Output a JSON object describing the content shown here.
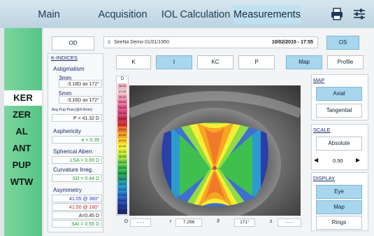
{
  "tabs": [
    {
      "label": "Main"
    },
    {
      "label": "Acquisition"
    },
    {
      "label": "IOL Calculation"
    },
    {
      "label": "Measurements"
    }
  ],
  "toolbar_icons": [
    "printer-icon",
    "sliders-icon"
  ],
  "left_nav": [
    {
      "label": "KER"
    },
    {
      "label": "ZER"
    },
    {
      "label": "AL"
    },
    {
      "label": "ANT"
    },
    {
      "label": "PUP"
    },
    {
      "label": "WTW"
    }
  ],
  "eye_left": "OD",
  "eye_right": "OS",
  "patient": "SeeNa Demo 01/01/1950",
  "exam_datetime": "10/02/2015 - 17:55",
  "kindices": {
    "title": "K-INDICES",
    "astig_label": "Astigmatism",
    "astig_3mm_label": "3mm",
    "astig_3mm_val": "-3.18D ax 172°",
    "astig_5mm_label": "5mm",
    "astig_5mm_val": "-3.16D ax 172°",
    "avgpup_label": "Avg Pup Pow.(@4.5mm)",
    "avgpup_val": "P = 41.32 D",
    "asph_label": "Asphericity",
    "asph_val": "e = 0.39",
    "sa_label": "Spherical Aberr.",
    "sa_val": "LSA = 0.69 D",
    "ci_label": "Curvature Irreg.",
    "ci_val": "SD = 0.44 D",
    "asym_label": "Asymmetry",
    "asym_v1": "41.05 @ 360°",
    "asym_v2": "41.50 @ 180°",
    "asym_v3": "A=0.45 D",
    "asym_v4": "SAI = 0.55 D"
  },
  "type_buttons": [
    {
      "label": "K"
    },
    {
      "label": "I"
    },
    {
      "label": "KC"
    },
    {
      "label": "P"
    }
  ],
  "view_buttons": [
    {
      "label": "Map"
    },
    {
      "label": "Profile"
    }
  ],
  "scale_title": "D",
  "scale_ticks": [
    "48.00",
    "47.00",
    "46.00",
    "45.50",
    "45.00",
    "44.50",
    "44.00",
    "43.50",
    "43.00",
    "42.50",
    "42.00",
    "41.50",
    "41.00",
    "40.50",
    "40.00",
    "39.50",
    "39.00",
    "38.50",
    "38.00",
    "37.50",
    "37.00",
    "36.50",
    "36.00",
    "35.00"
  ],
  "scale_colors": [
    "#f2b9c6",
    "#f3c6d0",
    "#f0a0b5",
    "#ea7aa0",
    "#e05b8b",
    "#d94a7b",
    "#c83350",
    "#e0383a",
    "#f07a2a",
    "#f6a623",
    "#fad02c",
    "#f7ee34",
    "#d9ef3b",
    "#a8e13f",
    "#6fd14a",
    "#3fbf4e",
    "#2aa852",
    "#2a9a7a",
    "#2aa0b8",
    "#2a8ed0",
    "#2a6fc8",
    "#2a52b8",
    "#233d9a",
    "#1e2f7a"
  ],
  "map_section": {
    "title": "MAP",
    "axial": "Axial",
    "tangential": "Tangential"
  },
  "scale_section": {
    "title": "SCALE",
    "absolute": "Absolute",
    "step": "0.50"
  },
  "display_section": {
    "title": "DISPLAY",
    "eye": "Eye",
    "map": "Map",
    "rings": "Rings"
  },
  "bottom": {
    "d_label": "D",
    "d_val": "- - -",
    "r_label": "r",
    "r_val": "7.296",
    "th_label": "ϑ",
    "th_val": "171°",
    "z_label": "z",
    "z_val": "- - -"
  }
}
